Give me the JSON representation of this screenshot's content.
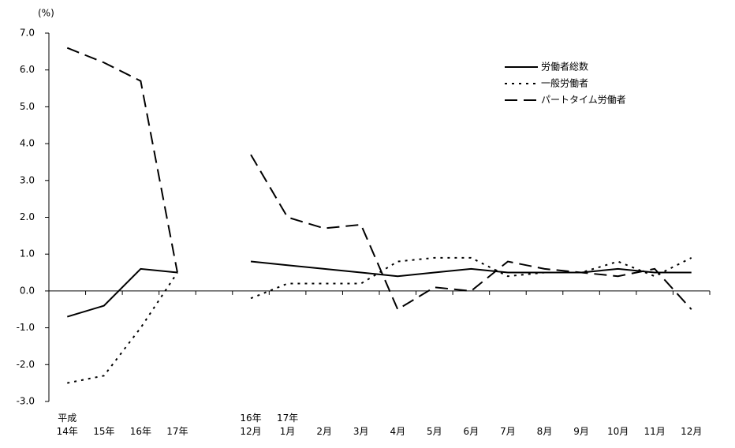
{
  "chart_data": {
    "type": "line",
    "y_label": "(%)",
    "categories": [
      "平成\n14年",
      "15年",
      "16年",
      "17年",
      null,
      "16年\n12月",
      "17年\n1月",
      "2月",
      "3月",
      "4月",
      "5月",
      "6月",
      "7月",
      "8月",
      "9月",
      "10月",
      "11月",
      "12月"
    ],
    "series": [
      {
        "name": "労働者総数",
        "color": "#000000",
        "dash": "solid",
        "values": [
          -0.7,
          -0.4,
          0.6,
          0.5,
          null,
          0.8,
          0.7,
          0.6,
          0.5,
          0.4,
          0.5,
          0.6,
          0.5,
          0.5,
          0.5,
          0.6,
          0.5,
          0.5
        ]
      },
      {
        "name": "一般労働者",
        "color": "#000000",
        "dash": "dotted",
        "values": [
          -2.5,
          -2.3,
          -1.0,
          0.5,
          null,
          -0.2,
          0.2,
          0.2,
          0.2,
          0.8,
          0.9,
          0.9,
          0.4,
          0.5,
          0.5,
          0.8,
          0.4,
          0.9
        ]
      },
      {
        "name": "パートタイム労働者",
        "color": "#000000",
        "dash": "dashed",
        "values": [
          6.6,
          6.2,
          5.7,
          0.5,
          null,
          3.7,
          2.0,
          1.7,
          1.8,
          -0.5,
          0.1,
          0.0,
          0.8,
          0.6,
          0.5,
          0.4,
          0.6,
          -0.5
        ]
      }
    ],
    "ylim": [
      -3.0,
      7.0
    ],
    "yticks": [
      {
        "value": -3,
        "label": "-3.0"
      },
      {
        "value": -2,
        "label": "-2.0"
      },
      {
        "value": -1,
        "label": "-1.0"
      },
      {
        "value": 0,
        "label": "0.0"
      },
      {
        "value": 1,
        "label": "1.0"
      },
      {
        "value": 2,
        "label": "2.0"
      },
      {
        "value": 3,
        "label": "3.0"
      },
      {
        "value": 4,
        "label": "4.0"
      },
      {
        "value": 5,
        "label": "5.0"
      },
      {
        "value": 6,
        "label": "6.0"
      },
      {
        "value": 7,
        "label": "7.0"
      }
    ],
    "grid": false,
    "legend": "top-right"
  }
}
